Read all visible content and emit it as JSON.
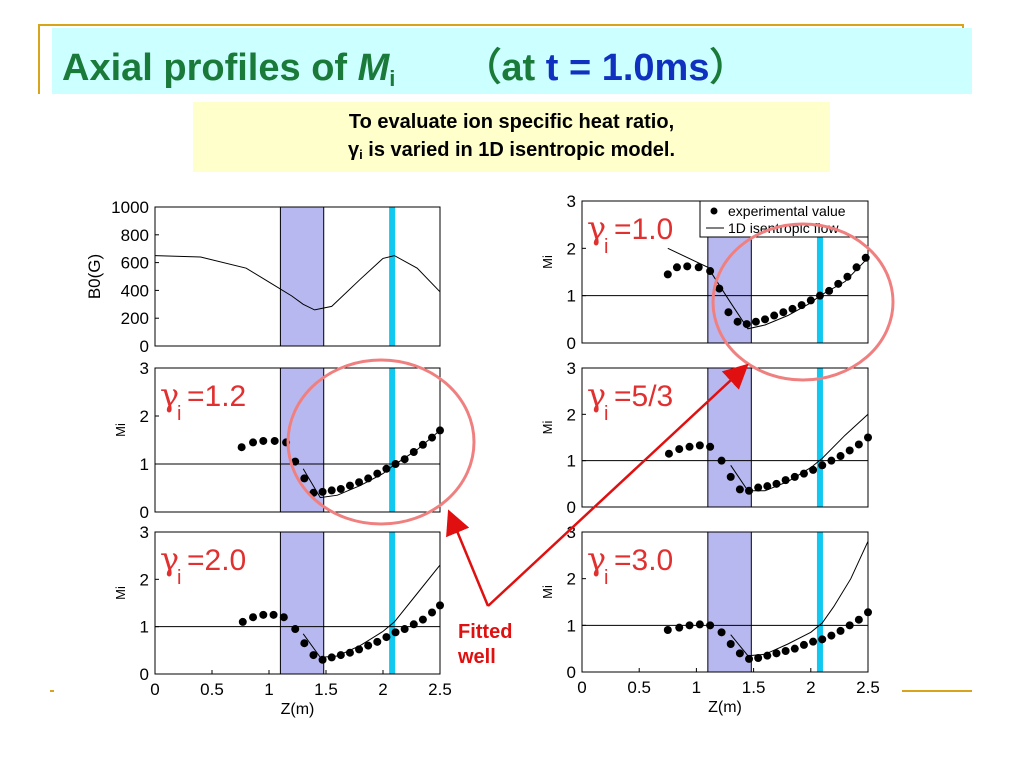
{
  "slide": {
    "title_prefix": "Axial profiles of ",
    "title_var": "M",
    "title_sub": "i",
    "title_paren_open": "（at ",
    "title_time": "t = 1.0ms",
    "title_paren_close": "）",
    "note_line1": "To evaluate ion specific heat ratio,",
    "note_gamma": "γ",
    "note_sub": "i",
    "note_line2_rest": " is varied in 1D isentropic model.",
    "fitted_line1": "Fitted",
    "fitted_line2": "well"
  },
  "colors": {
    "title_green": "#1a7a3a",
    "title_blue": "#1030c0",
    "title_band": "#ccffff",
    "note_bg": "#ffffcc",
    "band_fill": "#b8b8f0",
    "cyan_line": "#10c8f0",
    "gamma_label": "#e03030",
    "circle": "#f08080",
    "arrow": "#e01010"
  },
  "chart_data": [
    {
      "type": "line",
      "panel": "B0",
      "ylabel": "B0(G)",
      "yticks": [
        "0",
        "200",
        "400",
        "600",
        "800",
        "1000"
      ],
      "ylim": [
        0,
        1000
      ],
      "xlim": [
        0,
        2.5
      ],
      "x": [
        0,
        0.4,
        0.8,
        1.0,
        1.2,
        1.3,
        1.4,
        1.55,
        1.8,
        2.0,
        2.1,
        2.3,
        2.5
      ],
      "values": [
        650,
        640,
        560,
        460,
        360,
        300,
        260,
        285,
        480,
        630,
        650,
        560,
        390
      ]
    },
    {
      "type": "scatter",
      "panel": "gamma-1.0",
      "gamma_label": "=1.0",
      "ylabel": "Mi",
      "yticks": [
        "0",
        "1",
        "2",
        "3"
      ],
      "ylim": [
        0,
        3
      ],
      "xlim": [
        0,
        2.5
      ],
      "legend": [
        "experimental value",
        "1D isentropic flow"
      ],
      "points_x": [
        0.75,
        0.83,
        0.92,
        1.02,
        1.12,
        1.2,
        1.28,
        1.36,
        1.44,
        1.52,
        1.6,
        1.68,
        1.76,
        1.84,
        1.92,
        2.0,
        2.08,
        2.16,
        2.24,
        2.32,
        2.4,
        2.48
      ],
      "points_y": [
        1.45,
        1.6,
        1.62,
        1.6,
        1.52,
        1.15,
        0.65,
        0.45,
        0.4,
        0.45,
        0.5,
        0.58,
        0.65,
        0.72,
        0.8,
        0.9,
        1.0,
        1.1,
        1.25,
        1.4,
        1.6,
        1.8
      ],
      "model_x": [
        0.75,
        1.1,
        1.3,
        1.45,
        1.6,
        1.8,
        2.0,
        2.08,
        2.3,
        2.5
      ],
      "model_y": [
        2.0,
        1.6,
        0.85,
        0.3,
        0.38,
        0.58,
        0.85,
        1.0,
        1.3,
        1.8
      ]
    },
    {
      "type": "scatter",
      "panel": "gamma-1.2",
      "gamma_label": "=1.2",
      "ylabel": "Mi",
      "yticks": [
        "0",
        "1",
        "2",
        "3"
      ],
      "ylim": [
        0,
        3
      ],
      "xlim": [
        0,
        2.5
      ],
      "points_x": [
        0.76,
        0.86,
        0.95,
        1.05,
        1.15,
        1.23,
        1.31,
        1.39,
        1.47,
        1.55,
        1.63,
        1.71,
        1.79,
        1.87,
        1.95,
        2.03,
        2.11,
        2.19,
        2.27,
        2.35,
        2.43,
        2.5
      ],
      "points_y": [
        1.35,
        1.45,
        1.48,
        1.48,
        1.45,
        1.05,
        0.7,
        0.4,
        0.42,
        0.45,
        0.48,
        0.55,
        0.62,
        0.7,
        0.8,
        0.9,
        1.0,
        1.1,
        1.25,
        1.4,
        1.55,
        1.7
      ],
      "model_x": [
        1.3,
        1.45,
        1.6,
        1.8,
        2.0,
        2.08,
        2.3,
        2.5
      ],
      "model_y": [
        0.9,
        0.3,
        0.35,
        0.55,
        0.8,
        0.95,
        1.3,
        1.7
      ]
    },
    {
      "type": "scatter",
      "panel": "gamma-5/3",
      "gamma_label": "=5/3",
      "ylabel": "Mi",
      "yticks": [
        "0",
        "1",
        "2",
        "3"
      ],
      "ylim": [
        0,
        3
      ],
      "xlim": [
        0,
        2.5
      ],
      "points_x": [
        0.76,
        0.85,
        0.94,
        1.03,
        1.12,
        1.22,
        1.3,
        1.38,
        1.46,
        1.54,
        1.62,
        1.7,
        1.78,
        1.86,
        1.94,
        2.02,
        2.1,
        2.18,
        2.26,
        2.34,
        2.42,
        2.5
      ],
      "points_y": [
        1.15,
        1.25,
        1.3,
        1.33,
        1.3,
        1.0,
        0.65,
        0.38,
        0.35,
        0.42,
        0.45,
        0.5,
        0.58,
        0.65,
        0.72,
        0.8,
        0.9,
        1.0,
        1.1,
        1.22,
        1.35,
        1.5
      ],
      "model_x": [
        1.3,
        1.45,
        1.6,
        1.8,
        2.0,
        2.1,
        2.3,
        2.5
      ],
      "model_y": [
        0.9,
        0.35,
        0.35,
        0.55,
        0.85,
        1.05,
        1.55,
        2.0
      ]
    },
    {
      "type": "scatter",
      "panel": "gamma-2.0",
      "gamma_label": "=2.0",
      "ylabel": "Mi",
      "yticks": [
        "0",
        "1",
        "2",
        "3"
      ],
      "ylim": [
        0,
        3
      ],
      "xlim": [
        0,
        2.5
      ],
      "points_x": [
        0.77,
        0.86,
        0.95,
        1.04,
        1.13,
        1.23,
        1.31,
        1.39,
        1.47,
        1.55,
        1.63,
        1.71,
        1.79,
        1.87,
        1.95,
        2.03,
        2.11,
        2.19,
        2.27,
        2.35,
        2.43,
        2.5
      ],
      "points_y": [
        1.1,
        1.2,
        1.25,
        1.25,
        1.2,
        0.95,
        0.65,
        0.4,
        0.3,
        0.35,
        0.4,
        0.45,
        0.52,
        0.6,
        0.68,
        0.78,
        0.88,
        0.95,
        1.05,
        1.15,
        1.3,
        1.45
      ],
      "model_x": [
        1.3,
        1.45,
        1.6,
        1.8,
        2.0,
        2.1,
        2.3,
        2.5
      ],
      "model_y": [
        0.85,
        0.35,
        0.38,
        0.6,
        0.9,
        1.1,
        1.7,
        2.3
      ]
    },
    {
      "type": "scatter",
      "panel": "gamma-3.0",
      "gamma_label": "=3.0",
      "ylabel": "Mi",
      "yticks": [
        "0",
        "1",
        "2",
        "3"
      ],
      "ylim": [
        0,
        3
      ],
      "xlim": [
        0,
        2.5
      ],
      "xticks": [
        "0",
        "0.5",
        "1",
        "1.5",
        "2",
        "2.5"
      ],
      "xlabel": "Z(m)",
      "points_x": [
        0.75,
        0.85,
        0.94,
        1.03,
        1.12,
        1.22,
        1.3,
        1.38,
        1.46,
        1.54,
        1.62,
        1.7,
        1.78,
        1.86,
        1.94,
        2.02,
        2.1,
        2.18,
        2.26,
        2.34,
        2.42,
        2.5
      ],
      "points_y": [
        0.9,
        0.95,
        1.0,
        1.02,
        1.0,
        0.85,
        0.6,
        0.4,
        0.28,
        0.3,
        0.35,
        0.4,
        0.45,
        0.5,
        0.58,
        0.65,
        0.7,
        0.78,
        0.88,
        1.0,
        1.12,
        1.28
      ],
      "model_x": [
        1.3,
        1.45,
        1.6,
        1.8,
        2.0,
        2.1,
        2.2,
        2.35,
        2.5
      ],
      "model_y": [
        0.8,
        0.35,
        0.38,
        0.6,
        0.85,
        1.05,
        1.4,
        2.0,
        2.8
      ]
    }
  ],
  "figure_common": {
    "band_x": [
      1.1,
      1.48
    ],
    "cyan_x": 2.08,
    "xticks": [
      "0",
      "0.5",
      "1",
      "1.5",
      "2",
      "2.5"
    ],
    "xlabel": "Z(m)"
  }
}
